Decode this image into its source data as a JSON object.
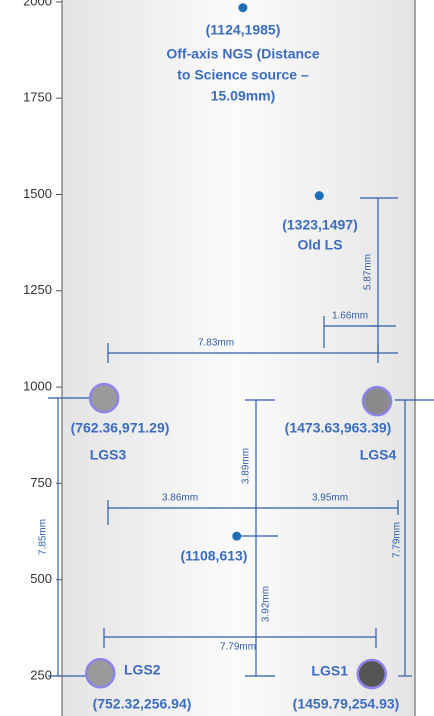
{
  "chart_data": {
    "type": "scatter",
    "ylim": [
      146,
      2005
    ],
    "xlim": [
      491,
      1622
    ],
    "yticks": [
      {
        "value": 2000,
        "label": "2000"
      },
      1750,
      1500,
      1250,
      1000,
      750,
      500,
      250
    ],
    "series": [
      {
        "color": "#1f6db5",
        "x": [
          1124,
          1323,
          1108
        ],
        "values": [
          1985,
          1497,
          613
        ],
        "value_labels": [
          "(1124,1985)",
          "(1323,1497)",
          "(1108,613)"
        ],
        "point_names": [
          [
            "Off-axis NGS (Distance",
            "to Science source –",
            "15.09mm)"
          ],
          [
            "Old LS"
          ],
          null
        ]
      },
      {
        "color": "#8c84e8",
        "x": [
          762.36,
          1473.63,
          752.32,
          1459.79
        ],
        "values": [
          971.29,
          963.39,
          256.94,
          254.93
        ],
        "value_labels": [
          "(762.36,971.29)",
          "(1473.63,963.39)",
          "(752.32,256.94)",
          "(1459.79,254.93)"
        ],
        "point_names": [
          "LGS3",
          "LGS4",
          "LGS2",
          "LGS1"
        ],
        "fills": [
          "#9a9a9a",
          "#8a8a8a",
          "#9a9a9a",
          "#555555"
        ]
      }
    ],
    "annotations": [
      "7.83mm",
      "1.66mm",
      "5.87mm",
      "3.89mm",
      "3.86mm",
      "3.95mm",
      "7.79mm",
      "3.92mm",
      "7.79mm",
      "7.85mm"
    ]
  }
}
